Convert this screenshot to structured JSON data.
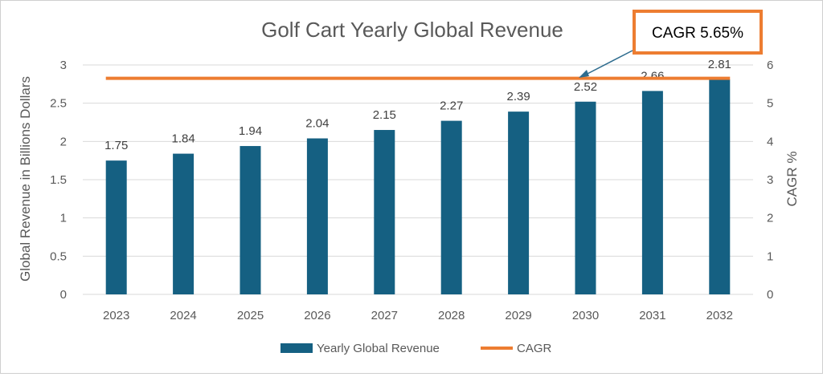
{
  "chart_data": {
    "type": "bar",
    "title": "Golf Cart Yearly Global Revenue",
    "categories": [
      "2023",
      "2024",
      "2025",
      "2026",
      "2027",
      "2028",
      "2029",
      "2030",
      "2031",
      "2032"
    ],
    "series": [
      {
        "name": "Yearly Global Revenue",
        "type": "bar",
        "axis": "left",
        "values": [
          1.75,
          1.84,
          1.94,
          2.04,
          2.15,
          2.27,
          2.39,
          2.52,
          2.66,
          2.81
        ],
        "color": "#156082"
      },
      {
        "name": "CAGR",
        "type": "line",
        "axis": "right",
        "values": [
          5.65,
          5.65,
          5.65,
          5.65,
          5.65,
          5.65,
          5.65,
          5.65,
          5.65,
          5.65
        ],
        "color": "#ED7D31"
      }
    ],
    "data_labels": [
      "1.75",
      "1.84",
      "1.94",
      "2.04",
      "2.15",
      "2.27",
      "2.39",
      "2.52",
      "2.66",
      "2.81"
    ],
    "ylabel": "Global Revenue in Billions Dollars",
    "ylabel_right": "CAGR %",
    "ylim": [
      0,
      3
    ],
    "ylim_right": [
      0,
      6
    ],
    "yticks": [
      "0",
      "0.5",
      "1",
      "1.5",
      "2",
      "2.5",
      "3"
    ],
    "yticks_right": [
      "0",
      "1",
      "2",
      "3",
      "4",
      "5",
      "6"
    ],
    "grid": true,
    "legend": "bottom",
    "annotation": {
      "text": "CAGR 5.65%",
      "border_color": "#ED7D31",
      "arrow_color": "#2E6C8E"
    }
  }
}
